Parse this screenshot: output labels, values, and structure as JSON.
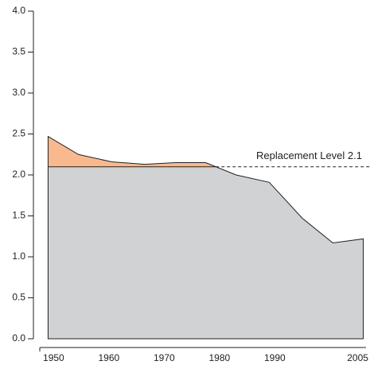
{
  "chart_data": {
    "type": "area",
    "x": [
      1949,
      1954.5,
      1960.5,
      1966.5,
      1972,
      1977.5,
      1983,
      1989,
      1995,
      2000.5,
      2006
    ],
    "values": [
      2.47,
      2.25,
      2.16,
      2.13,
      2.15,
      2.15,
      2.0,
      1.91,
      1.47,
      1.17,
      1.22
    ],
    "color": "#d1d2d4",
    "above_color": "#f9b98e",
    "reference": {
      "value": 2.1,
      "label": "Replacement Level 2.1"
    },
    "xlim": [
      1947.5,
      2006.5
    ],
    "xticks": [
      1950,
      1960,
      1970,
      1980,
      1990,
      2005
    ],
    "ylim": [
      0,
      4
    ],
    "yticks": [
      {
        "value": 0,
        "label": "0.0"
      },
      {
        "value": 0.5,
        "label": "0.5"
      },
      {
        "value": 1,
        "label": "1.0"
      },
      {
        "value": 1.5,
        "label": "1.5"
      },
      {
        "value": 2,
        "label": "2.0"
      },
      {
        "value": 2.5,
        "label": "2.5"
      },
      {
        "value": 3,
        "label": "3.0"
      },
      {
        "value": 3.5,
        "label": "3.5"
      },
      {
        "value": 4,
        "label": "4.0"
      }
    ]
  }
}
